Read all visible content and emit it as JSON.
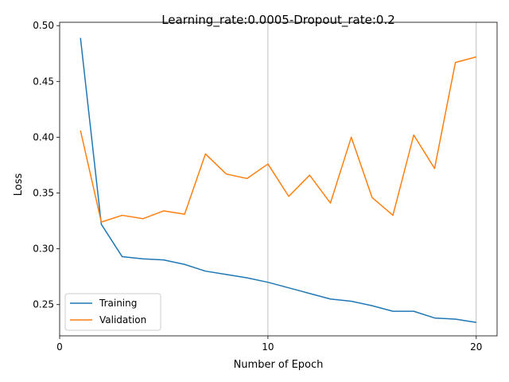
{
  "chart_data": {
    "type": "line",
    "title": "Learning_rate:0.0005-Dropout_rate:0.2",
    "xlabel": "Number of Epoch",
    "ylabel": "Loss",
    "xlim": [
      0,
      21
    ],
    "ylim": [
      0.222,
      0.503
    ],
    "xticks": [
      0,
      10,
      20
    ],
    "yticks": [
      0.25,
      0.3,
      0.35,
      0.4,
      0.45,
      0.5
    ],
    "ytick_labels": [
      "0.25",
      "0.30",
      "0.35",
      "0.40",
      "0.45",
      "0.50"
    ],
    "grid": "vertical lines at x = 10 and x = 20",
    "legend_position": "lower-left",
    "x": [
      1,
      2,
      3,
      4,
      5,
      6,
      7,
      8,
      9,
      10,
      11,
      12,
      13,
      14,
      15,
      16,
      17,
      18,
      19,
      20
    ],
    "series": [
      {
        "name": "Training",
        "color": "#1f77b4",
        "values": [
          0.489,
          0.322,
          0.293,
          0.291,
          0.29,
          0.286,
          0.28,
          0.277,
          0.274,
          0.27,
          0.265,
          0.26,
          0.255,
          0.253,
          0.249,
          0.244,
          0.244,
          0.238,
          0.237,
          0.234
        ]
      },
      {
        "name": "Validation",
        "color": "#ff7f0e",
        "values": [
          0.406,
          0.324,
          0.33,
          0.327,
          0.334,
          0.331,
          0.385,
          0.367,
          0.363,
          0.376,
          0.347,
          0.366,
          0.341,
          0.4,
          0.346,
          0.33,
          0.402,
          0.372,
          0.467,
          0.472
        ]
      }
    ]
  }
}
